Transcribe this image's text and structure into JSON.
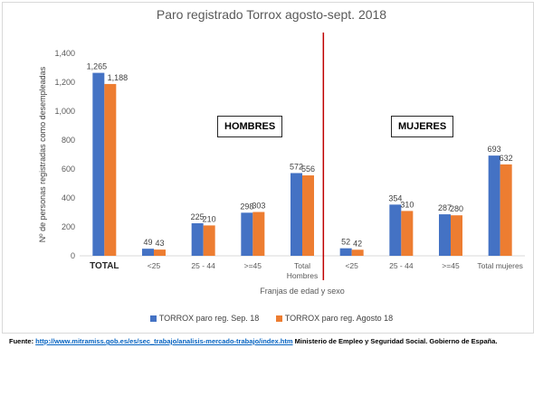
{
  "chart_data": {
    "type": "bar",
    "title": "Paro registrado Torrox agosto-sept. 2018",
    "ylabel": "Nº de personas registradas como desempleadas",
    "xlabel": "Franjas de edad y sexo",
    "ylim": [
      0,
      1400
    ],
    "yticks": [
      "0",
      "200",
      "400",
      "600",
      "800",
      "1,000",
      "1,200",
      "1,400"
    ],
    "categories": [
      "TOTAL",
      "<25",
      "25 - 44",
      ">=45",
      "Total Hombres",
      "<25",
      "25 - 44",
      ">=45",
      "Total mujeres"
    ],
    "series": [
      {
        "name": "TORROX paro reg. Sep. 18",
        "color": "#4472c4",
        "values": [
          1265,
          49,
          225,
          298,
          572,
          52,
          354,
          287,
          693
        ],
        "labels": [
          "1,265",
          "49",
          "225",
          "298",
          "572",
          "52",
          "354",
          "287",
          "693"
        ]
      },
      {
        "name": "TORROX paro reg. Agosto 18",
        "color": "#ed7d31",
        "values": [
          1188,
          43,
          210,
          303,
          556,
          42,
          310,
          280,
          632
        ],
        "labels": [
          "1,188",
          "43",
          "210",
          "303",
          "556",
          "42",
          "310",
          "280",
          "632"
        ]
      }
    ],
    "grid": false,
    "legend": "bottom",
    "divider_color": "#c00000",
    "annotations": [
      "HOMBRES",
      "MUJERES"
    ]
  },
  "source": {
    "prefix": "Fuente: ",
    "link": "http://www.mitramiss.gob.es/es/sec_trabajo/analisis-mercado-trabajo/index.htm",
    "suffix": " Ministerio de Empleo y Seguridad Social. Gobierno de España."
  }
}
